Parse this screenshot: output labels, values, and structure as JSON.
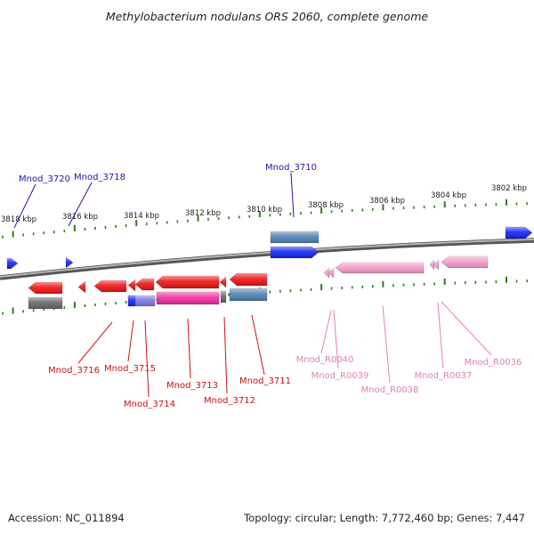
{
  "title": "Methylobacterium nodulans ORS 2060, complete genome",
  "footer": {
    "accession": "Accession: NC_011894",
    "summary": "Topology: circular; Length: 7,772,460 bp; Genes: 7,447"
  },
  "colors": {
    "backbone": "#8a8a8a",
    "tick": "#2e7d1a",
    "red": "#ee1111",
    "blue": "#1122ee",
    "pink": "#f39ac8",
    "magenta": "#ee2aa0",
    "steel": "#4f7fb0",
    "gray": "#666666",
    "lavender": "#7777dd",
    "label_blue": "#1a1aa8",
    "label_red": "#cc1111",
    "label_pink": "#e27fb4"
  },
  "scale_labels": [
    "3818 kbp",
    "3816 kbp",
    "3814 kbp",
    "3812 kbp",
    "3810 kbp",
    "3808 kbp",
    "3806 kbp",
    "3804 kbp",
    "3802 kbp"
  ],
  "gene_labels": [
    {
      "text": "Mnod_3720",
      "color": "label_blue"
    },
    {
      "text": "Mnod_3718",
      "color": "label_blue"
    },
    {
      "text": "Mnod_3710",
      "color": "label_blue"
    },
    {
      "text": "Mnod_3716",
      "color": "label_red"
    },
    {
      "text": "Mnod_3715",
      "color": "label_red"
    },
    {
      "text": "Mnod_3714",
      "color": "label_red"
    },
    {
      "text": "Mnod_3713",
      "color": "label_red"
    },
    {
      "text": "Mnod_3712",
      "color": "label_red"
    },
    {
      "text": "Mnod_3711",
      "color": "label_red"
    },
    {
      "text": "Mnod_R0040",
      "color": "label_pink"
    },
    {
      "text": "Mnod_R0039",
      "color": "label_pink"
    },
    {
      "text": "Mnod_R0038",
      "color": "label_pink"
    },
    {
      "text": "Mnod_R0037",
      "color": "label_pink"
    },
    {
      "text": "Mnod_R0036",
      "color": "label_pink"
    }
  ]
}
